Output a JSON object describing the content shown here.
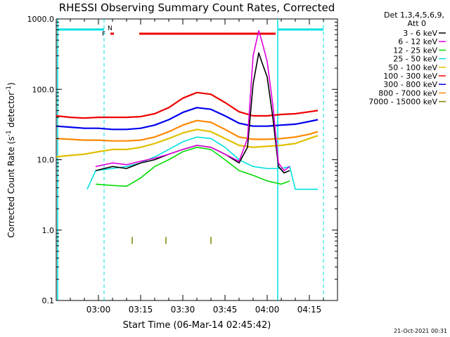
{
  "chart_data": {
    "type": "line",
    "title": "RHESSI Observing Summary Count Rates, Corrected",
    "xlabel": "Start Time (06-Mar-14 02:45:42)",
    "ylabel_main": "Corrected Count Rate (s",
    "ylabel_sup": "-1",
    "ylabel_rest": " detector",
    "ylabel_sup2": "-1",
    "ylabel_end": ")",
    "yscale": "log",
    "ylim": [
      0.1,
      1000
    ],
    "xlim": [
      "02:45",
      "04:25"
    ],
    "y_ticks": [
      {
        "value": 0.1,
        "label": "0.1"
      },
      {
        "value": 1,
        "label": "1.0"
      },
      {
        "value": 10,
        "label": "10.0"
      },
      {
        "value": 100,
        "label": "100.0"
      },
      {
        "value": 1000,
        "label": "1000.0"
      }
    ],
    "x_ticks": [
      {
        "t": "03:00",
        "label": "03:00"
      },
      {
        "t": "03:15",
        "label": "03:15"
      },
      {
        "t": "03:30",
        "label": "03:30"
      },
      {
        "t": "03:45",
        "label": "03:45"
      },
      {
        "t": "04:00",
        "label": "04:00"
      },
      {
        "t": "04:15",
        "label": "04:15"
      }
    ],
    "legend_header": [
      "Det 1,3,4,5,6,9,",
      "Att 0"
    ],
    "legend_placement": "right",
    "series": [
      {
        "name": "3 - 6 keV",
        "color": "#000000",
        "x": [
          "02:59",
          "03:05",
          "03:10",
          "03:15",
          "03:20",
          "03:25",
          "03:30",
          "03:35",
          "03:40",
          "03:45",
          "03:50",
          "03:53",
          "03:55",
          "03:57",
          "03:58",
          "04:00",
          "04:02",
          "04:04",
          "04:06",
          "04:08"
        ],
        "y": [
          7,
          8,
          7.5,
          9,
          10,
          12,
          14,
          16,
          15,
          12,
          9,
          15,
          120,
          330,
          250,
          150,
          40,
          8,
          6.5,
          7
        ]
      },
      {
        "name": "6 - 12 keV",
        "color": "#dd00dd",
        "x": [
          "02:59",
          "03:05",
          "03:10",
          "03:15",
          "03:20",
          "03:25",
          "03:30",
          "03:35",
          "03:40",
          "03:45",
          "03:50",
          "03:53",
          "03:55",
          "03:57",
          "03:58",
          "04:00",
          "04:02",
          "04:04",
          "04:06",
          "04:08"
        ],
        "y": [
          8,
          9,
          8.5,
          9.5,
          10.5,
          12,
          14,
          16,
          15,
          12,
          9.5,
          20,
          300,
          680,
          500,
          250,
          60,
          9,
          7,
          8
        ]
      },
      {
        "name": "12 - 25 keV",
        "color": "#00dd00",
        "x": [
          "02:59",
          "03:05",
          "03:10",
          "03:15",
          "03:20",
          "03:25",
          "03:30",
          "03:35",
          "03:40",
          "03:45",
          "03:50",
          "03:55",
          "04:00",
          "04:05",
          "04:08"
        ],
        "y": [
          4.5,
          4.3,
          4.2,
          5.5,
          8,
          10,
          13,
          15,
          14,
          10,
          7,
          6,
          5,
          4.5,
          5
        ]
      },
      {
        "name": "25 - 50 keV",
        "color": "#00e0e0",
        "x": [
          "02:56",
          "02:59",
          "03:05",
          "03:10",
          "03:15",
          "03:20",
          "03:25",
          "03:30",
          "03:35",
          "03:40",
          "03:45",
          "03:50",
          "03:55",
          "04:00",
          "04:05",
          "04:08",
          "04:10",
          "04:15",
          "04:18"
        ],
        "y": [
          3.8,
          7,
          7.5,
          8,
          9,
          11,
          14,
          18,
          21,
          20,
          15,
          10,
          8,
          7.5,
          7.5,
          8,
          3.8,
          3.8,
          3.8
        ]
      },
      {
        "name": "50 - 100 keV",
        "color": "#e0c000",
        "x": [
          "02:45",
          "02:50",
          "02:55",
          "03:00",
          "03:05",
          "03:10",
          "03:15",
          "03:20",
          "03:25",
          "03:30",
          "03:35",
          "03:40",
          "03:45",
          "03:50",
          "03:55",
          "04:00",
          "04:05",
          "04:10",
          "04:15",
          "04:18"
        ],
        "y": [
          11,
          11.5,
          12,
          13,
          14,
          14,
          15,
          17,
          20,
          24,
          27,
          25,
          20,
          16,
          15,
          15.5,
          16,
          17,
          20,
          22
        ]
      },
      {
        "name": "100 - 300 keV",
        "color": "#ee0000",
        "x": [
          "02:45",
          "02:50",
          "02:55",
          "03:00",
          "03:05",
          "03:10",
          "03:15",
          "03:20",
          "03:25",
          "03:30",
          "03:35",
          "03:40",
          "03:45",
          "03:50",
          "03:55",
          "04:00",
          "04:05",
          "04:10",
          "04:15",
          "04:18"
        ],
        "y": [
          42,
          40,
          39,
          40,
          40,
          40,
          41,
          45,
          55,
          75,
          90,
          85,
          65,
          48,
          42,
          42,
          44,
          45,
          48,
          50
        ]
      },
      {
        "name": "300 - 800 keV",
        "color": "#0000ee",
        "x": [
          "02:45",
          "02:50",
          "02:55",
          "03:00",
          "03:05",
          "03:10",
          "03:15",
          "03:20",
          "03:25",
          "03:30",
          "03:35",
          "03:40",
          "03:45",
          "03:50",
          "03:55",
          "04:00",
          "04:05",
          "04:10",
          "04:15",
          "04:18"
        ],
        "y": [
          30,
          29,
          28,
          28,
          27,
          27,
          28,
          31,
          37,
          47,
          55,
          52,
          42,
          33,
          30,
          30,
          31,
          32,
          35,
          37
        ]
      },
      {
        "name": "800 - 7000 keV",
        "color": "#ff8800",
        "x": [
          "02:45",
          "02:50",
          "02:55",
          "03:00",
          "03:05",
          "03:10",
          "03:15",
          "03:20",
          "03:25",
          "03:30",
          "03:35",
          "03:40",
          "03:45",
          "03:50",
          "03:55",
          "04:00",
          "04:05",
          "04:10",
          "04:15",
          "04:18"
        ],
        "y": [
          20,
          19.5,
          19,
          19,
          18.5,
          18.5,
          19,
          21,
          25,
          31,
          36,
          34,
          27,
          21,
          19.5,
          19.5,
          20,
          21,
          23,
          25
        ]
      },
      {
        "name": "7000 - 15000 keV",
        "color": "#808000",
        "x": [
          "03:12",
          "03:24",
          "03:40"
        ],
        "y": [
          0.8,
          0.8,
          0.8
        ]
      }
    ],
    "state_bars": [
      {
        "label": "N",
        "color": "#00e0e0"
      },
      {
        "label": "F",
        "color": "#ee0000"
      }
    ],
    "footer_date": "21-Oct-2021 00:31"
  }
}
